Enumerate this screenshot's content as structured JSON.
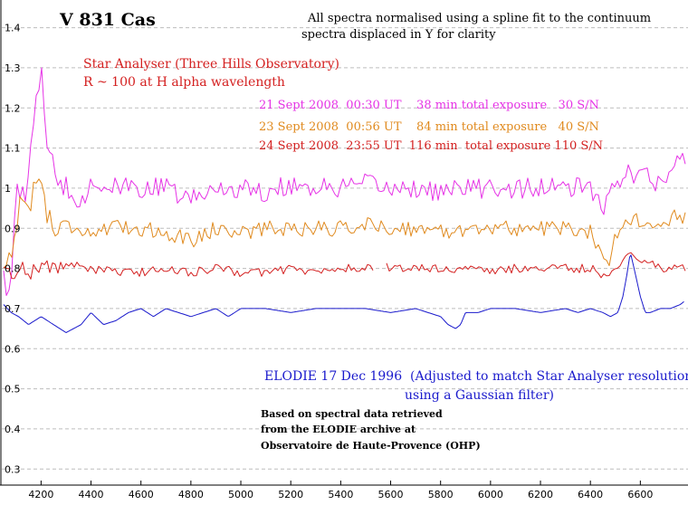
{
  "chart_data": {
    "type": "line",
    "title": "V 831 Cas",
    "subtitle_lines": [
      "All spectra normalised using a spline fit to the continuum",
      "spectra displaced in Y for clarity"
    ],
    "instrument_lines": [
      "Star Analyser (Three Hills Observatory)",
      "R ~ 100 at H alpha wavelength"
    ],
    "source_note_lines": [
      "Based on spectral data retrieved",
      "from the ELODIE archive at",
      "Observatoire de Haute-Provence (OHP)"
    ],
    "xlabel": "",
    "ylabel": "",
    "xlim": [
      4050,
      6780
    ],
    "ylim": [
      0.26,
      1.46
    ],
    "x_ticks": [
      4200,
      4400,
      4600,
      4800,
      5000,
      5200,
      5400,
      5600,
      5800,
      6000,
      6200,
      6400,
      6600
    ],
    "y_ticks": [
      0.3,
      0.4,
      0.5,
      0.6,
      0.7,
      0.8,
      0.9,
      1,
      1.1,
      1.2,
      1.3,
      1.4
    ],
    "grid": "horizontal dashed",
    "series": [
      {
        "name": "21 Sept 2008  00:30 UT    38 min total exposure   30 S/N",
        "color": "#e633e6",
        "noise": 0.026,
        "x": [
          4050,
          4070,
          4100,
          4130,
          4160,
          4185,
          4200,
          4215,
          4240,
          4260,
          4290,
          4320,
          4360,
          4400,
          4500,
          4600,
          4700,
          4800,
          4900,
          5000,
          5100,
          5200,
          5300,
          5400,
          5500,
          5600,
          5700,
          5800,
          5900,
          6000,
          6100,
          6200,
          6300,
          6400,
          6450,
          6500,
          6550,
          6580,
          6620,
          6660,
          6700,
          6740,
          6760,
          6780
        ],
        "y": [
          0.8,
          0.74,
          0.96,
          0.99,
          1.07,
          1.22,
          1.34,
          1.16,
          1.08,
          0.98,
          1.02,
          0.99,
          0.97,
          1.01,
          1.0,
          1.0,
          1.0,
          0.97,
          1.0,
          1.0,
          0.99,
          1.01,
          1.0,
          1.0,
          1.01,
          1.0,
          1.0,
          0.99,
          1.0,
          1.0,
          1.0,
          1.0,
          1.0,
          1.0,
          0.95,
          1.0,
          1.06,
          1.03,
          1.04,
          1.0,
          1.02,
          1.05,
          1.1,
          1.04
        ]
      },
      {
        "name": "23 Sept 2008  00:56 UT    84 min total exposure   40 S/N",
        "color": "#e08a1e",
        "noise": 0.02,
        "x": [
          4050,
          4080,
          4110,
          4140,
          4170,
          4200,
          4230,
          4260,
          4300,
          4400,
          4500,
          4600,
          4700,
          4800,
          4900,
          5000,
          5100,
          5200,
          5300,
          5400,
          5500,
          5600,
          5700,
          5800,
          5900,
          6000,
          6100,
          6200,
          6300,
          6400,
          6440,
          6470,
          6500,
          6550,
          6600,
          6650,
          6700,
          6740,
          6780
        ],
        "y": [
          0.8,
          0.84,
          0.95,
          0.96,
          0.99,
          1.02,
          0.93,
          0.89,
          0.91,
          0.89,
          0.9,
          0.9,
          0.89,
          0.87,
          0.9,
          0.89,
          0.9,
          0.9,
          0.9,
          0.9,
          0.91,
          0.9,
          0.9,
          0.89,
          0.9,
          0.9,
          0.9,
          0.9,
          0.9,
          0.89,
          0.85,
          0.81,
          0.89,
          0.92,
          0.92,
          0.89,
          0.91,
          0.93,
          0.92
        ]
      },
      {
        "name": "24 Sept 2008  23:55 UT  116 min  total exposure 110 S/N",
        "color": "#d42020",
        "noise": 0.011,
        "gap": [
          5535,
          5575
        ],
        "x": [
          4050,
          4080,
          4120,
          4160,
          4200,
          4250,
          4300,
          4400,
          4500,
          4600,
          4700,
          4800,
          4900,
          5000,
          5100,
          5200,
          5300,
          5400,
          5500,
          5535,
          5575,
          5600,
          5700,
          5800,
          5900,
          6000,
          6100,
          6200,
          6300,
          6400,
          6460,
          6500,
          6520,
          6550,
          6580,
          6620,
          6660,
          6700,
          6740,
          6780
        ],
        "y": [
          0.8,
          0.78,
          0.81,
          0.79,
          0.81,
          0.8,
          0.81,
          0.8,
          0.79,
          0.79,
          0.8,
          0.79,
          0.8,
          0.79,
          0.79,
          0.8,
          0.79,
          0.8,
          0.8,
          0.8,
          0.81,
          0.8,
          0.8,
          0.8,
          0.8,
          0.79,
          0.8,
          0.8,
          0.8,
          0.8,
          0.78,
          0.8,
          0.81,
          0.84,
          0.83,
          0.82,
          0.81,
          0.8,
          0.8,
          0.8
        ]
      },
      {
        "name": "ELODIE 17 Dec 1996  (Adjusted to match Star Analyser resolution",
        "name_line2": "using a Gaussian filter)",
        "color": "#1a1acc",
        "noise": 0.0,
        "x": [
          4050,
          4080,
          4110,
          4150,
          4200,
          4250,
          4300,
          4330,
          4360,
          4400,
          4450,
          4500,
          4550,
          4600,
          4650,
          4700,
          4750,
          4800,
          4850,
          4900,
          4950,
          5000,
          5100,
          5200,
          5300,
          5400,
          5500,
          5600,
          5700,
          5750,
          5800,
          5830,
          5860,
          5880,
          5900,
          5950,
          6000,
          6100,
          6200,
          6300,
          6350,
          6400,
          6450,
          6480,
          6510,
          6530,
          6545,
          6560,
          6575,
          6600,
          6620,
          6640,
          6680,
          6720,
          6760,
          6780
        ],
        "y": [
          0.71,
          0.69,
          0.68,
          0.66,
          0.68,
          0.66,
          0.64,
          0.65,
          0.66,
          0.69,
          0.66,
          0.67,
          0.69,
          0.7,
          0.68,
          0.7,
          0.69,
          0.68,
          0.69,
          0.7,
          0.68,
          0.7,
          0.7,
          0.69,
          0.7,
          0.7,
          0.7,
          0.69,
          0.7,
          0.69,
          0.68,
          0.66,
          0.65,
          0.66,
          0.69,
          0.69,
          0.7,
          0.7,
          0.69,
          0.7,
          0.69,
          0.7,
          0.69,
          0.68,
          0.69,
          0.73,
          0.78,
          0.84,
          0.8,
          0.73,
          0.69,
          0.69,
          0.7,
          0.7,
          0.71,
          0.72
        ]
      }
    ]
  }
}
